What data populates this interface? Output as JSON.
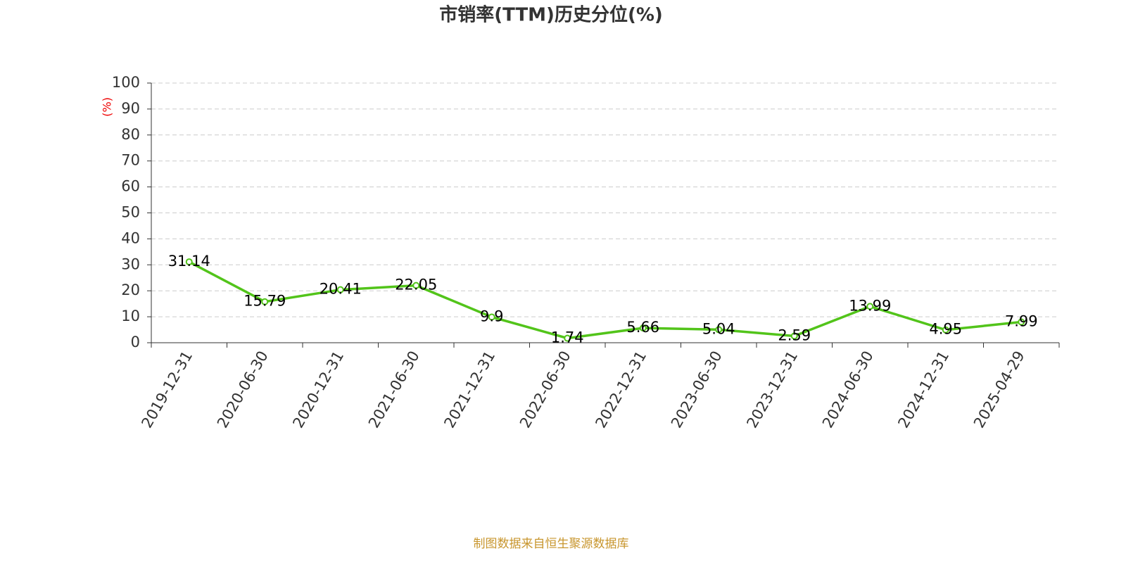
{
  "chart_data": {
    "type": "line",
    "title": "市销率(TTM)历史分位(%)",
    "y_label": "(%)",
    "footer": "制图数据来自恒生聚源数据库",
    "categories": [
      "2019-12-31",
      "2020-06-30",
      "2020-12-31",
      "2021-06-30",
      "2021-12-31",
      "2022-06-30",
      "2022-12-31",
      "2023-06-30",
      "2023-12-31",
      "2024-06-30",
      "2024-12-31",
      "2025-04-29"
    ],
    "values": [
      31.14,
      15.79,
      20.41,
      22.05,
      9.9,
      1.74,
      5.66,
      5.04,
      2.59,
      13.99,
      4.95,
      7.99
    ],
    "color": "#52c41a",
    "ylim": [
      0,
      100
    ],
    "yticks": [
      0,
      10,
      20,
      30,
      40,
      50,
      60,
      70,
      80,
      90,
      100
    ],
    "grid": true
  }
}
